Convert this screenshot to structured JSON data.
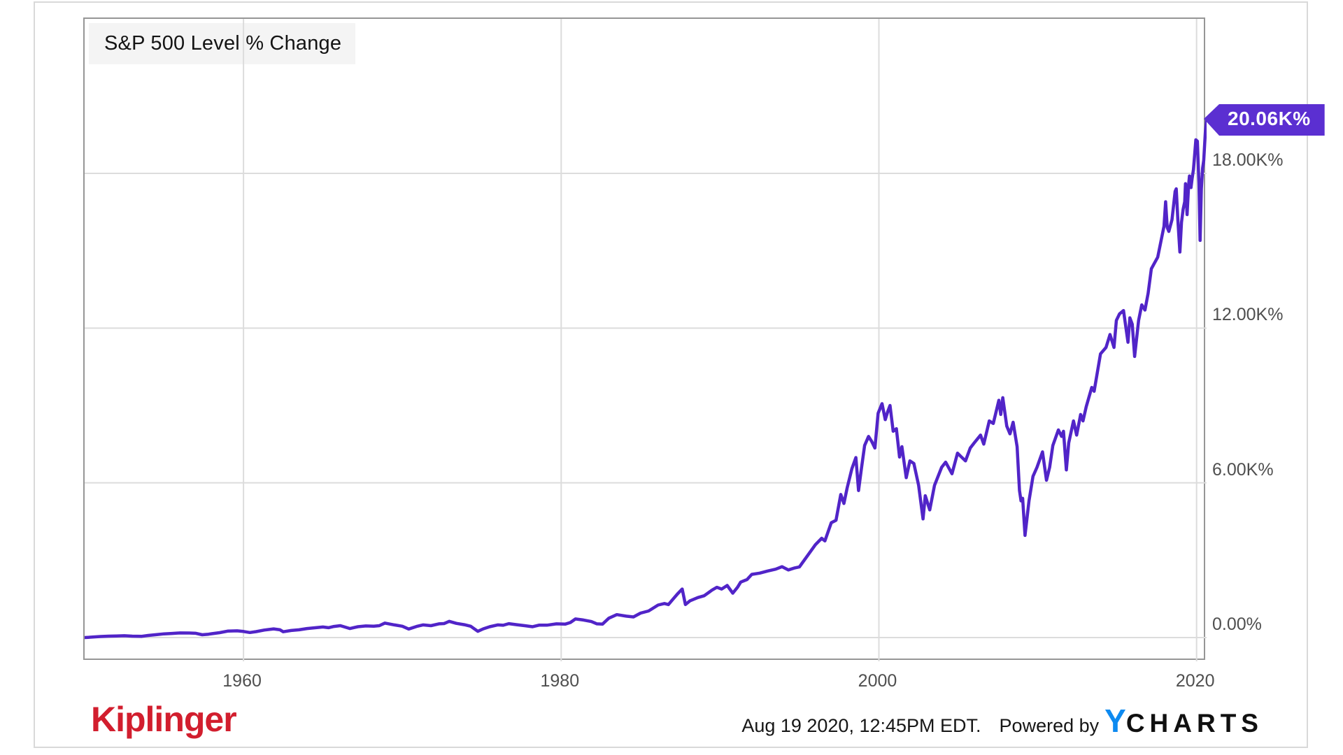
{
  "chart_data": {
    "type": "line",
    "title": "S&P 500 Level % Change",
    "series_name": "S&P 500 Level % Change",
    "last_value_label": "20.06K%",
    "last_value_k": 20.06,
    "line_color": "#5124c8",
    "badge_color": "#5b2fd1",
    "grid_color": "#dcdcdc",
    "x_range_years": [
      1950,
      2020.63
    ],
    "y_range_k": [
      -0.92,
      24.0
    ],
    "x_axis": {
      "ticks": [
        {
          "label": "1960",
          "year": 1960
        },
        {
          "label": "1980",
          "year": 1980
        },
        {
          "label": "2000",
          "year": 2000
        },
        {
          "label": "2020",
          "year": 2020
        }
      ]
    },
    "y_axis": {
      "ticks": [
        {
          "label": "18.00K%",
          "value_k": 18
        },
        {
          "label": "12.00K%",
          "value_k": 12
        },
        {
          "label": "6.00K%",
          "value_k": 6
        },
        {
          "label": "0.00%",
          "value_k": 0
        }
      ]
    },
    "points": [
      [
        1950.0,
        0.0
      ],
      [
        1950.5,
        0.02
      ],
      [
        1951.0,
        0.04
      ],
      [
        1951.5,
        0.055
      ],
      [
        1952.0,
        0.06
      ],
      [
        1952.5,
        0.07
      ],
      [
        1953.0,
        0.055
      ],
      [
        1953.6,
        0.05
      ],
      [
        1954.0,
        0.08
      ],
      [
        1954.5,
        0.11
      ],
      [
        1955.0,
        0.145
      ],
      [
        1955.5,
        0.16
      ],
      [
        1956.0,
        0.18
      ],
      [
        1956.6,
        0.175
      ],
      [
        1957.0,
        0.165
      ],
      [
        1957.8,
        0.13
      ],
      [
        1958.0,
        0.15
      ],
      [
        1958.5,
        0.19
      ],
      [
        1959.0,
        0.25
      ],
      [
        1959.6,
        0.26
      ],
      [
        1960.0,
        0.235
      ],
      [
        1960.8,
        0.23
      ],
      [
        1961.3,
        0.29
      ],
      [
        1961.9,
        0.335
      ],
      [
        1962.3,
        0.3
      ],
      [
        1962.5,
        0.225
      ],
      [
        1963.0,
        0.275
      ],
      [
        1963.5,
        0.3
      ],
      [
        1964.0,
        0.35
      ],
      [
        1964.5,
        0.38
      ],
      [
        1965.0,
        0.41
      ],
      [
        1965.7,
        0.43
      ],
      [
        1966.1,
        0.46
      ],
      [
        1966.7,
        0.35
      ],
      [
        1967.2,
        0.42
      ],
      [
        1967.7,
        0.45
      ],
      [
        1968.2,
        0.44
      ],
      [
        1968.9,
        0.56
      ],
      [
        1969.5,
        0.49
      ],
      [
        1970.0,
        0.44
      ],
      [
        1970.4,
        0.33
      ],
      [
        1970.9,
        0.43
      ],
      [
        1971.3,
        0.49
      ],
      [
        1971.8,
        0.46
      ],
      [
        1972.3,
        0.53
      ],
      [
        1972.95,
        0.63
      ],
      [
        1973.4,
        0.55
      ],
      [
        1973.9,
        0.5
      ],
      [
        1974.3,
        0.44
      ],
      [
        1974.75,
        0.24
      ],
      [
        1975.1,
        0.34
      ],
      [
        1975.5,
        0.42
      ],
      [
        1976.0,
        0.49
      ],
      [
        1976.7,
        0.54
      ],
      [
        1977.2,
        0.5
      ],
      [
        1977.7,
        0.46
      ],
      [
        1978.2,
        0.42
      ],
      [
        1978.6,
        0.48
      ],
      [
        1979.1,
        0.48
      ],
      [
        1979.7,
        0.53
      ],
      [
        1980.25,
        0.52
      ],
      [
        1980.9,
        0.72
      ],
      [
        1981.4,
        0.68
      ],
      [
        1981.9,
        0.62
      ],
      [
        1982.6,
        0.52
      ],
      [
        1983.0,
        0.75
      ],
      [
        1983.5,
        0.89
      ],
      [
        1984.1,
        0.83
      ],
      [
        1984.55,
        0.8
      ],
      [
        1985.0,
        0.95
      ],
      [
        1985.5,
        1.03
      ],
      [
        1986.1,
        1.26
      ],
      [
        1986.5,
        1.32
      ],
      [
        1986.75,
        1.28
      ],
      [
        1987.0,
        1.46
      ],
      [
        1987.35,
        1.71
      ],
      [
        1987.62,
        1.88
      ],
      [
        1987.82,
        1.28
      ],
      [
        1988.1,
        1.42
      ],
      [
        1988.6,
        1.55
      ],
      [
        1989.0,
        1.62
      ],
      [
        1989.5,
        1.84
      ],
      [
        1989.8,
        1.95
      ],
      [
        1990.1,
        1.88
      ],
      [
        1990.45,
        2.02
      ],
      [
        1990.8,
        1.72
      ],
      [
        1991.1,
        1.95
      ],
      [
        1991.3,
        2.15
      ],
      [
        1991.7,
        2.25
      ],
      [
        1992.0,
        2.45
      ],
      [
        1992.5,
        2.5
      ],
      [
        1993.0,
        2.58
      ],
      [
        1993.5,
        2.65
      ],
      [
        1993.9,
        2.75
      ],
      [
        1994.3,
        2.62
      ],
      [
        1994.7,
        2.7
      ],
      [
        1995.0,
        2.74
      ],
      [
        1995.5,
        3.17
      ],
      [
        1996.0,
        3.6
      ],
      [
        1996.4,
        3.85
      ],
      [
        1996.6,
        3.75
      ],
      [
        1997.0,
        4.45
      ],
      [
        1997.3,
        4.55
      ],
      [
        1997.6,
        5.55
      ],
      [
        1997.8,
        5.2
      ],
      [
        1998.0,
        5.8
      ],
      [
        1998.3,
        6.55
      ],
      [
        1998.55,
        6.98
      ],
      [
        1998.72,
        5.7
      ],
      [
        1998.9,
        6.55
      ],
      [
        1999.1,
        7.45
      ],
      [
        1999.35,
        7.8
      ],
      [
        1999.55,
        7.6
      ],
      [
        1999.75,
        7.35
      ],
      [
        1999.95,
        8.7
      ],
      [
        2000.2,
        9.07
      ],
      [
        2000.4,
        8.45
      ],
      [
        2000.55,
        8.75
      ],
      [
        2000.7,
        9.0
      ],
      [
        2000.9,
        8.0
      ],
      [
        2001.1,
        8.1
      ],
      [
        2001.3,
        7.0
      ],
      [
        2001.45,
        7.4
      ],
      [
        2001.72,
        6.2
      ],
      [
        2001.95,
        6.85
      ],
      [
        2002.2,
        6.75
      ],
      [
        2002.5,
        5.9
      ],
      [
        2002.78,
        4.6
      ],
      [
        2002.92,
        5.5
      ],
      [
        2003.2,
        4.95
      ],
      [
        2003.5,
        5.9
      ],
      [
        2003.95,
        6.6
      ],
      [
        2004.2,
        6.8
      ],
      [
        2004.6,
        6.35
      ],
      [
        2004.95,
        7.15
      ],
      [
        2005.2,
        7.0
      ],
      [
        2005.45,
        6.85
      ],
      [
        2005.75,
        7.35
      ],
      [
        2006.0,
        7.55
      ],
      [
        2006.4,
        7.85
      ],
      [
        2006.6,
        7.5
      ],
      [
        2006.95,
        8.4
      ],
      [
        2007.2,
        8.3
      ],
      [
        2007.55,
        9.2
      ],
      [
        2007.67,
        8.65
      ],
      [
        2007.8,
        9.3
      ],
      [
        2008.05,
        8.2
      ],
      [
        2008.25,
        7.9
      ],
      [
        2008.45,
        8.35
      ],
      [
        2008.7,
        7.4
      ],
      [
        2008.85,
        5.7
      ],
      [
        2008.95,
        5.3
      ],
      [
        2009.05,
        5.4
      ],
      [
        2009.2,
        3.96
      ],
      [
        2009.45,
        5.3
      ],
      [
        2009.7,
        6.25
      ],
      [
        2009.95,
        6.6
      ],
      [
        2010.3,
        7.2
      ],
      [
        2010.55,
        6.1
      ],
      [
        2010.75,
        6.6
      ],
      [
        2010.95,
        7.45
      ],
      [
        2011.3,
        8.05
      ],
      [
        2011.5,
        7.8
      ],
      [
        2011.62,
        8.0
      ],
      [
        2011.8,
        6.5
      ],
      [
        2011.95,
        7.55
      ],
      [
        2012.25,
        8.4
      ],
      [
        2012.45,
        7.85
      ],
      [
        2012.7,
        8.65
      ],
      [
        2012.85,
        8.4
      ],
      [
        2013.05,
        8.95
      ],
      [
        2013.4,
        9.7
      ],
      [
        2013.55,
        9.55
      ],
      [
        2013.95,
        11.0
      ],
      [
        2014.3,
        11.25
      ],
      [
        2014.55,
        11.75
      ],
      [
        2014.8,
        11.25
      ],
      [
        2014.95,
        12.3
      ],
      [
        2015.15,
        12.55
      ],
      [
        2015.4,
        12.68
      ],
      [
        2015.68,
        11.45
      ],
      [
        2015.8,
        12.4
      ],
      [
        2015.95,
        12.15
      ],
      [
        2016.1,
        10.9
      ],
      [
        2016.35,
        12.3
      ],
      [
        2016.55,
        12.9
      ],
      [
        2016.75,
        12.7
      ],
      [
        2016.95,
        13.35
      ],
      [
        2017.15,
        14.3
      ],
      [
        2017.55,
        14.75
      ],
      [
        2017.95,
        15.95
      ],
      [
        2018.05,
        16.9
      ],
      [
        2018.15,
        15.9
      ],
      [
        2018.25,
        15.75
      ],
      [
        2018.45,
        16.2
      ],
      [
        2018.65,
        17.3
      ],
      [
        2018.72,
        17.4
      ],
      [
        2018.82,
        16.2
      ],
      [
        2018.95,
        14.95
      ],
      [
        2019.05,
        16.1
      ],
      [
        2019.15,
        16.6
      ],
      [
        2019.25,
        16.9
      ],
      [
        2019.3,
        17.6
      ],
      [
        2019.4,
        16.4
      ],
      [
        2019.5,
        17.55
      ],
      [
        2019.55,
        17.9
      ],
      [
        2019.65,
        17.45
      ],
      [
        2019.72,
        17.8
      ],
      [
        2019.8,
        18.15
      ],
      [
        2019.88,
        18.75
      ],
      [
        2019.95,
        19.3
      ],
      [
        2020.05,
        19.25
      ],
      [
        2020.15,
        17.6
      ],
      [
        2020.22,
        15.4
      ],
      [
        2020.3,
        17.4
      ],
      [
        2020.38,
        18.2
      ],
      [
        2020.45,
        18.5
      ],
      [
        2020.55,
        19.6
      ],
      [
        2020.63,
        20.06
      ]
    ]
  },
  "footer": {
    "brand": "Kiplinger",
    "brand_color": "#d21e2e",
    "timestamp": "Aug 19 2020, 12:45PM EDT.",
    "powered_by": "Powered by",
    "ycharts_y": "Y",
    "ycharts_rest": "CHARTS",
    "ycharts_blue": "#0d8af0"
  }
}
